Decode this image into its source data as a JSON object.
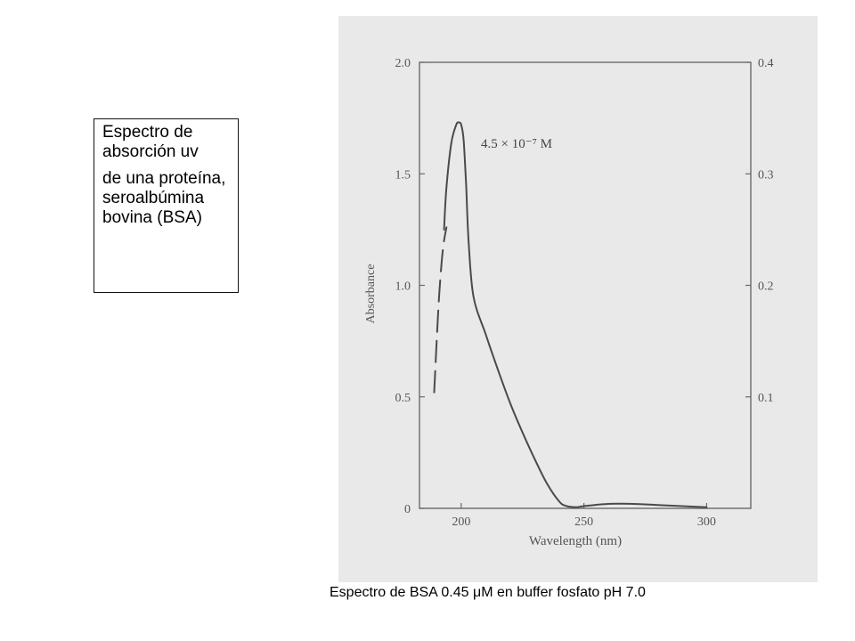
{
  "caption_box": {
    "line1": "Espectro de absorción uv",
    "line2": "de una proteína, seroalbúmina bovina (BSA)"
  },
  "figure_caption": "Espectro de BSA 0.45 μM en buffer fosfato pH 7.0",
  "chart_data": {
    "type": "line",
    "xlabel": "Wavelength (nm)",
    "ylabel": "Absorbance",
    "xlim": [
      183,
      318
    ],
    "ylim": [
      0,
      2.0
    ],
    "y2lim": [
      0,
      0.4
    ],
    "x_ticks": [
      200,
      250,
      300
    ],
    "x_tick_labels": [
      "200",
      "250",
      "300"
    ],
    "y_ticks": [
      0,
      0.5,
      1.0,
      1.5,
      2.0
    ],
    "y_tick_labels": [
      "0",
      "0.5",
      "1.0",
      "1.5",
      "2.0"
    ],
    "y2_ticks": [
      0.1,
      0.2,
      0.3,
      0.4
    ],
    "y2_tick_labels": [
      "0.1",
      "0.2",
      "0.3",
      "0.4"
    ],
    "annotation": "4.5 × 10⁻⁷ M",
    "series": [
      {
        "name": "",
        "style": "dashed",
        "x": [
          189,
          190,
          191,
          192,
          193,
          194
        ],
        "y": [
          0.52,
          0.75,
          0.95,
          1.1,
          1.2,
          1.26
        ]
      },
      {
        "name": "",
        "style": "solid",
        "x": [
          193,
          194,
          196,
          198,
          199,
          200,
          201,
          202,
          203,
          205,
          210,
          215,
          220,
          225,
          230,
          235,
          240,
          243,
          247,
          250,
          260,
          270,
          280,
          290,
          300
        ],
        "y": [
          1.25,
          1.44,
          1.64,
          1.72,
          1.73,
          1.72,
          1.65,
          1.45,
          1.2,
          0.95,
          0.78,
          0.62,
          0.47,
          0.34,
          0.22,
          0.11,
          0.03,
          0.01,
          0.005,
          0.01,
          0.02,
          0.02,
          0.015,
          0.01,
          0.005
        ]
      }
    ],
    "grid": false,
    "colors": {
      "line": "#4a4a4a",
      "axis": "#6a6a6a",
      "background": "#e9e9e9"
    }
  }
}
